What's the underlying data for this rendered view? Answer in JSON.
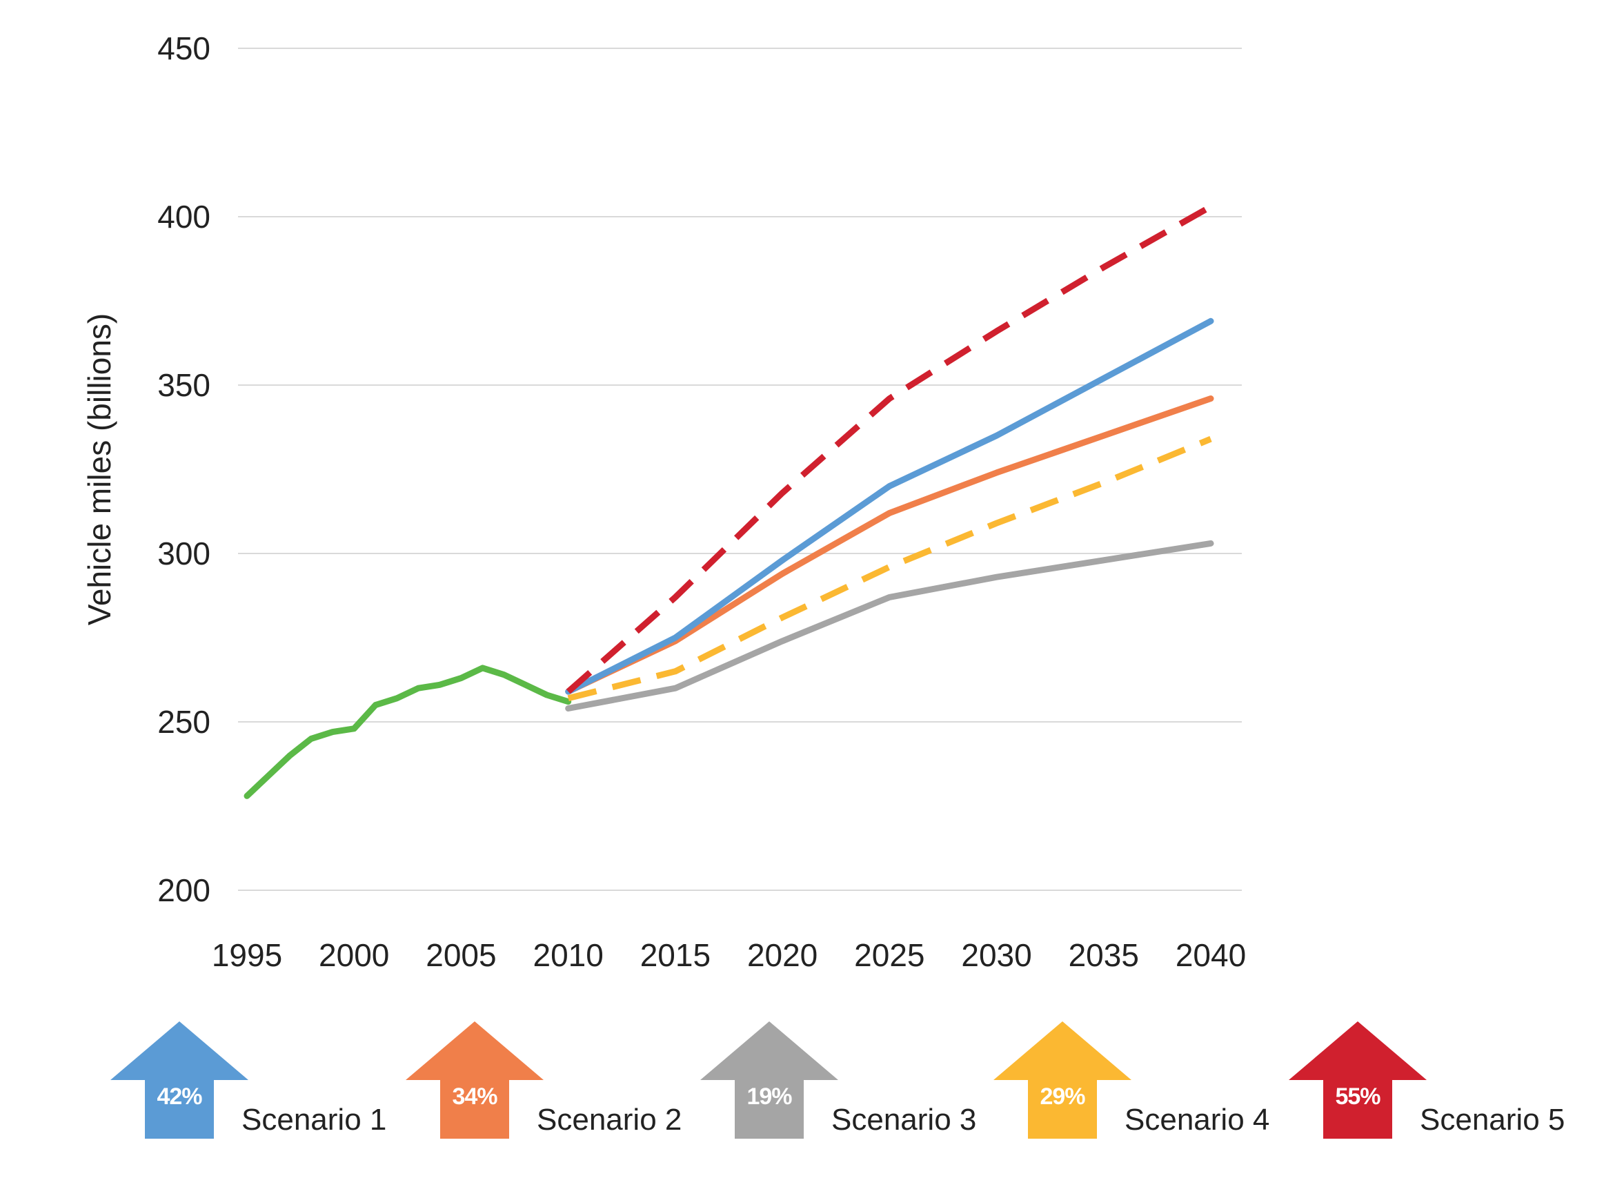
{
  "chart_data": {
    "type": "line",
    "ylabel": "Vehicle miles (billions)",
    "xlabel": "",
    "xlim": [
      1995,
      2040
    ],
    "ylim": [
      200,
      450
    ],
    "x_ticks": [
      "1995",
      "2000",
      "2005",
      "2010",
      "2015",
      "2020",
      "2025",
      "2030",
      "2035",
      "2040"
    ],
    "y_ticks": [
      "450",
      "400",
      "350",
      "300",
      "250",
      "200"
    ],
    "grid": "horizontal",
    "legend_position": "bottom",
    "historical": {
      "color": "#5BB947",
      "x": [
        1995,
        1996,
        1997,
        1998,
        1999,
        2000,
        2001,
        2002,
        2003,
        2004,
        2005,
        2006,
        2007,
        2008,
        2009,
        2010
      ],
      "y": [
        228,
        234,
        240,
        245,
        247,
        248,
        255,
        257,
        260,
        261,
        263,
        266,
        264,
        261,
        258,
        256
      ]
    },
    "series": [
      {
        "name": "Scenario 1",
        "color": "#5B9BD5",
        "dash": "solid",
        "percent": "42%",
        "x": [
          2010,
          2015,
          2020,
          2025,
          2030,
          2035,
          2040
        ],
        "y": [
          259,
          275,
          298,
          320,
          335,
          352,
          369
        ]
      },
      {
        "name": "Scenario 2",
        "color": "#F07F4A",
        "dash": "solid",
        "percent": "34%",
        "x": [
          2010,
          2015,
          2020,
          2025,
          2030,
          2035,
          2040
        ],
        "y": [
          259,
          274,
          294,
          312,
          324,
          335,
          346
        ]
      },
      {
        "name": "Scenario 3",
        "color": "#A5A5A5",
        "dash": "solid",
        "percent": "19%",
        "x": [
          2010,
          2015,
          2020,
          2025,
          2030,
          2035,
          2040
        ],
        "y": [
          254,
          260,
          274,
          287,
          293,
          298,
          303
        ]
      },
      {
        "name": "Scenario 4",
        "color": "#FBB832",
        "dash": "dashed",
        "percent": "29%",
        "x": [
          2010,
          2015,
          2020,
          2025,
          2030,
          2035,
          2040
        ],
        "y": [
          257,
          265,
          281,
          296,
          309,
          321,
          334
        ]
      },
      {
        "name": "Scenario 5",
        "color": "#D0202E",
        "dash": "dashed",
        "percent": "55%",
        "x": [
          2010,
          2015,
          2020,
          2025,
          2030,
          2035,
          2040
        ],
        "y": [
          259,
          287,
          318,
          346,
          366,
          385,
          403
        ]
      }
    ]
  }
}
